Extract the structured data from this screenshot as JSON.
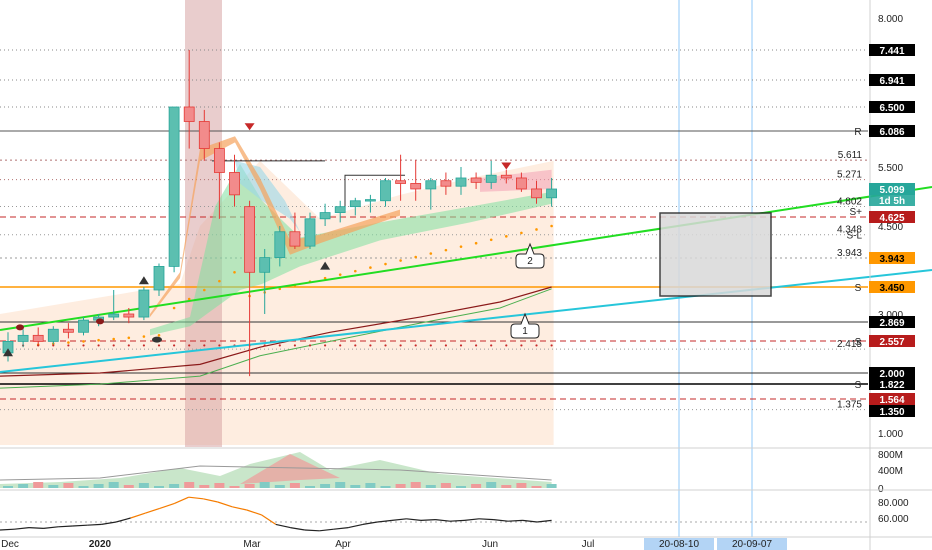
{
  "chart_data": {
    "type": "candlestick",
    "main_axis": {
      "ticks": [
        "8.000",
        "5.500",
        "4.500",
        "3.000",
        "2.000",
        "1.000"
      ],
      "price_tags": [
        {
          "value": 7.441,
          "label": "7.441",
          "bg": "#000000",
          "fg": "#ffffff"
        },
        {
          "value": 6.941,
          "label": "6.941",
          "bg": "#000000",
          "fg": "#ffffff"
        },
        {
          "value": 6.5,
          "label": "6.500",
          "bg": "#000000",
          "fg": "#ffffff"
        },
        {
          "value": 6.086,
          "label": "6.086",
          "bg": "#000000",
          "fg": "#ffffff"
        },
        {
          "value": 5.099,
          "label": "5.099",
          "bg": "#26a69a",
          "fg": "#ffffff",
          "sub": "1d 5h"
        },
        {
          "value": 4.625,
          "label": "4.625",
          "bg": "#b71c1c",
          "fg": "#ffffff"
        },
        {
          "value": 3.943,
          "label": "3.943",
          "bg": "#ff9800",
          "fg": "#000000"
        },
        {
          "value": 3.45,
          "label": "3.450",
          "bg": "#ff9800",
          "fg": "#000000"
        },
        {
          "value": 2.869,
          "label": "2.869",
          "bg": "#000000",
          "fg": "#ffffff"
        },
        {
          "value": 2.557,
          "label": "2.557",
          "bg": "#b71c1c",
          "fg": "#ffffff"
        },
        {
          "value": 2.0,
          "label": "2.000",
          "bg": "#000000",
          "fg": "#ffffff"
        },
        {
          "value": 1.822,
          "label": "1.822",
          "bg": "#000000",
          "fg": "#ffffff"
        },
        {
          "value": 1.564,
          "label": "1.564",
          "bg": "#b71c1c",
          "fg": "#ffffff"
        },
        {
          "value": 1.35,
          "label": "1.350",
          "bg": "#000000",
          "fg": "#ffffff"
        }
      ],
      "level_annotations": [
        {
          "value": 5.611,
          "label": "5.611"
        },
        {
          "value": 5.271,
          "label": "5.271"
        },
        {
          "value": 4.802,
          "label": "4.802"
        },
        {
          "value": 4.625,
          "label": "S+"
        },
        {
          "value": 4.348,
          "label": "4.348"
        },
        {
          "value": 4.25,
          "label": "S-L"
        },
        {
          "value": 3.943,
          "label": "3.943"
        },
        {
          "value": 2.415,
          "label": "2.415"
        },
        {
          "value": 1.375,
          "label": "1.375"
        }
      ],
      "right_markers": [
        {
          "value": 6.086,
          "label": "R",
          "color": "#e53935"
        },
        {
          "value": 3.45,
          "label": "S",
          "color": "#555555"
        },
        {
          "value": 2.557,
          "label": "S",
          "color": "#555555"
        },
        {
          "value": 1.822,
          "label": "S",
          "color": "#2196f3"
        }
      ]
    },
    "volume_axis": {
      "ticks": [
        "800M",
        "400M",
        "0"
      ]
    },
    "oscillator_axis": {
      "ticks": [
        "80.000",
        "60.000"
      ],
      "values": [
        45,
        46,
        48,
        47,
        49,
        50,
        51,
        52,
        55,
        60,
        66,
        72,
        78,
        86,
        84,
        80,
        74,
        70,
        64,
        52,
        48,
        45,
        44,
        46,
        48,
        52,
        55,
        57,
        59,
        57,
        58,
        56,
        57,
        59,
        58,
        56,
        57,
        55,
        57
      ]
    },
    "x_labels": [
      "Dec",
      "2020",
      "Mar",
      "Apr",
      "Jun",
      "Jul"
    ],
    "date_highlights": [
      "20-08-10",
      "20-09-07"
    ],
    "callouts": [
      "2",
      "1"
    ],
    "candles": [
      {
        "o": 2.35,
        "h": 2.7,
        "l": 2.2,
        "c": 2.55
      },
      {
        "o": 2.55,
        "h": 2.75,
        "l": 2.45,
        "c": 2.65
      },
      {
        "o": 2.65,
        "h": 2.78,
        "l": 2.5,
        "c": 2.55
      },
      {
        "o": 2.55,
        "h": 2.8,
        "l": 2.5,
        "c": 2.75
      },
      {
        "o": 2.75,
        "h": 2.85,
        "l": 2.6,
        "c": 2.7
      },
      {
        "o": 2.7,
        "h": 2.95,
        "l": 2.65,
        "c": 2.9
      },
      {
        "o": 2.9,
        "h": 3.0,
        "l": 2.8,
        "c": 2.95
      },
      {
        "o": 2.95,
        "h": 3.4,
        "l": 2.9,
        "c": 3.0
      },
      {
        "o": 3.0,
        "h": 3.1,
        "l": 2.85,
        "c": 2.95
      },
      {
        "o": 2.95,
        "h": 3.45,
        "l": 2.9,
        "c": 3.4
      },
      {
        "o": 3.4,
        "h": 3.85,
        "l": 3.3,
        "c": 3.8
      },
      {
        "o": 3.8,
        "h": 6.5,
        "l": 3.7,
        "c": 6.5
      },
      {
        "o": 6.5,
        "h": 7.441,
        "l": 5.8,
        "c": 6.25
      },
      {
        "o": 6.25,
        "h": 6.45,
        "l": 5.6,
        "c": 5.8
      },
      {
        "o": 5.8,
        "h": 5.9,
        "l": 4.6,
        "c": 5.4
      },
      {
        "o": 5.4,
        "h": 5.7,
        "l": 4.8,
        "c": 5.0
      },
      {
        "o": 4.8,
        "h": 4.9,
        "l": 1.95,
        "c": 3.7
      },
      {
        "o": 3.7,
        "h": 4.1,
        "l": 3.0,
        "c": 3.95
      },
      {
        "o": 3.95,
        "h": 4.5,
        "l": 3.8,
        "c": 4.4
      },
      {
        "o": 4.4,
        "h": 4.7,
        "l": 4.1,
        "c": 4.15
      },
      {
        "o": 4.15,
        "h": 4.7,
        "l": 4.1,
        "c": 4.6
      },
      {
        "o": 4.6,
        "h": 4.85,
        "l": 4.5,
        "c": 4.7
      },
      {
        "o": 4.7,
        "h": 4.9,
        "l": 4.55,
        "c": 4.8
      },
      {
        "o": 4.8,
        "h": 4.95,
        "l": 4.65,
        "c": 4.9
      },
      {
        "o": 4.9,
        "h": 5.0,
        "l": 4.7,
        "c": 4.92
      },
      {
        "o": 4.9,
        "h": 5.3,
        "l": 4.8,
        "c": 5.25
      },
      {
        "o": 5.25,
        "h": 5.7,
        "l": 4.9,
        "c": 5.2
      },
      {
        "o": 5.2,
        "h": 5.611,
        "l": 4.9,
        "c": 5.1
      },
      {
        "o": 5.1,
        "h": 5.3,
        "l": 4.75,
        "c": 5.25
      },
      {
        "o": 5.25,
        "h": 5.4,
        "l": 5.0,
        "c": 5.15
      },
      {
        "o": 5.15,
        "h": 5.5,
        "l": 5.0,
        "c": 5.3
      },
      {
        "o": 5.3,
        "h": 5.4,
        "l": 5.1,
        "c": 5.22
      },
      {
        "o": 5.22,
        "h": 5.6,
        "l": 5.1,
        "c": 5.35
      },
      {
        "o": 5.35,
        "h": 5.45,
        "l": 5.2,
        "c": 5.3
      },
      {
        "o": 5.3,
        "h": 5.4,
        "l": 5.05,
        "c": 5.1
      },
      {
        "o": 5.1,
        "h": 5.25,
        "l": 4.85,
        "c": 4.95
      },
      {
        "o": 4.95,
        "h": 5.3,
        "l": 4.8,
        "c": 5.099
      }
    ]
  }
}
